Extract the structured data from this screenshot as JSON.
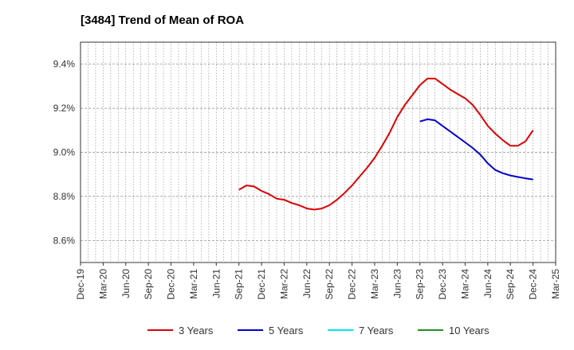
{
  "chart_data": {
    "type": "line",
    "title": "[3484]  Trend of Mean of ROA",
    "xlabel": "",
    "ylabel": "",
    "x_ticks": [
      "Dec-19",
      "Mar-20",
      "Jun-20",
      "Sep-20",
      "Dec-20",
      "Mar-21",
      "Jun-21",
      "Sep-21",
      "Dec-21",
      "Mar-22",
      "Jun-22",
      "Sep-22",
      "Dec-22",
      "Mar-23",
      "Jun-23",
      "Sep-23",
      "Dec-23",
      "Mar-24",
      "Jun-24",
      "Sep-24",
      "Dec-24",
      "Mar-25"
    ],
    "y_ticks": [
      "8.6%",
      "8.8%",
      "9.0%",
      "9.2%",
      "9.4%"
    ],
    "ylim": [
      8.5,
      9.5
    ],
    "grid": true,
    "legend_position": "bottom",
    "series": [
      {
        "name": "3 Years",
        "color": "#dd0000",
        "x": [
          "Sep-21",
          "Oct-21",
          "Nov-21",
          "Dec-21",
          "Jan-22",
          "Feb-22",
          "Mar-22",
          "Apr-22",
          "May-22",
          "Jun-22",
          "Jul-22",
          "Aug-22",
          "Sep-22",
          "Oct-22",
          "Nov-22",
          "Dec-22",
          "Jan-23",
          "Feb-23",
          "Mar-23",
          "Apr-23",
          "May-23",
          "Jun-23",
          "Jul-23",
          "Aug-23",
          "Sep-23",
          "Oct-23",
          "Nov-23",
          "Dec-23",
          "Jan-24",
          "Feb-24",
          "Mar-24",
          "Apr-24",
          "May-24",
          "Jun-24",
          "Jul-24",
          "Aug-24",
          "Sep-24",
          "Oct-24",
          "Nov-24",
          "Dec-24"
        ],
        "values": [
          8.83,
          8.85,
          8.845,
          8.825,
          8.81,
          8.79,
          8.785,
          8.77,
          8.76,
          8.745,
          8.74,
          8.745,
          8.76,
          8.785,
          8.815,
          8.85,
          8.89,
          8.93,
          8.975,
          9.03,
          9.09,
          9.16,
          9.215,
          9.26,
          9.305,
          9.335,
          9.335,
          9.31,
          9.285,
          9.265,
          9.245,
          9.215,
          9.17,
          9.12,
          9.085,
          9.055,
          9.03,
          9.03,
          9.05,
          9.1
        ]
      },
      {
        "name": "5 Years",
        "color": "#0000cc",
        "x": [
          "Sep-23",
          "Oct-23",
          "Nov-23",
          "Dec-23",
          "Jan-24",
          "Feb-24",
          "Mar-24",
          "Apr-24",
          "May-24",
          "Jun-24",
          "Jul-24",
          "Aug-24",
          "Sep-24",
          "Oct-24",
          "Nov-24",
          "Dec-24"
        ],
        "values": [
          9.14,
          9.15,
          9.145,
          9.12,
          9.095,
          9.07,
          9.045,
          9.02,
          8.99,
          8.95,
          8.92,
          8.905,
          8.895,
          8.888,
          8.882,
          8.877
        ]
      },
      {
        "name": "7 Years",
        "color": "#00e5ee",
        "x": [],
        "values": []
      },
      {
        "name": "10 Years",
        "color": "#228b22",
        "x": [],
        "values": []
      }
    ]
  }
}
